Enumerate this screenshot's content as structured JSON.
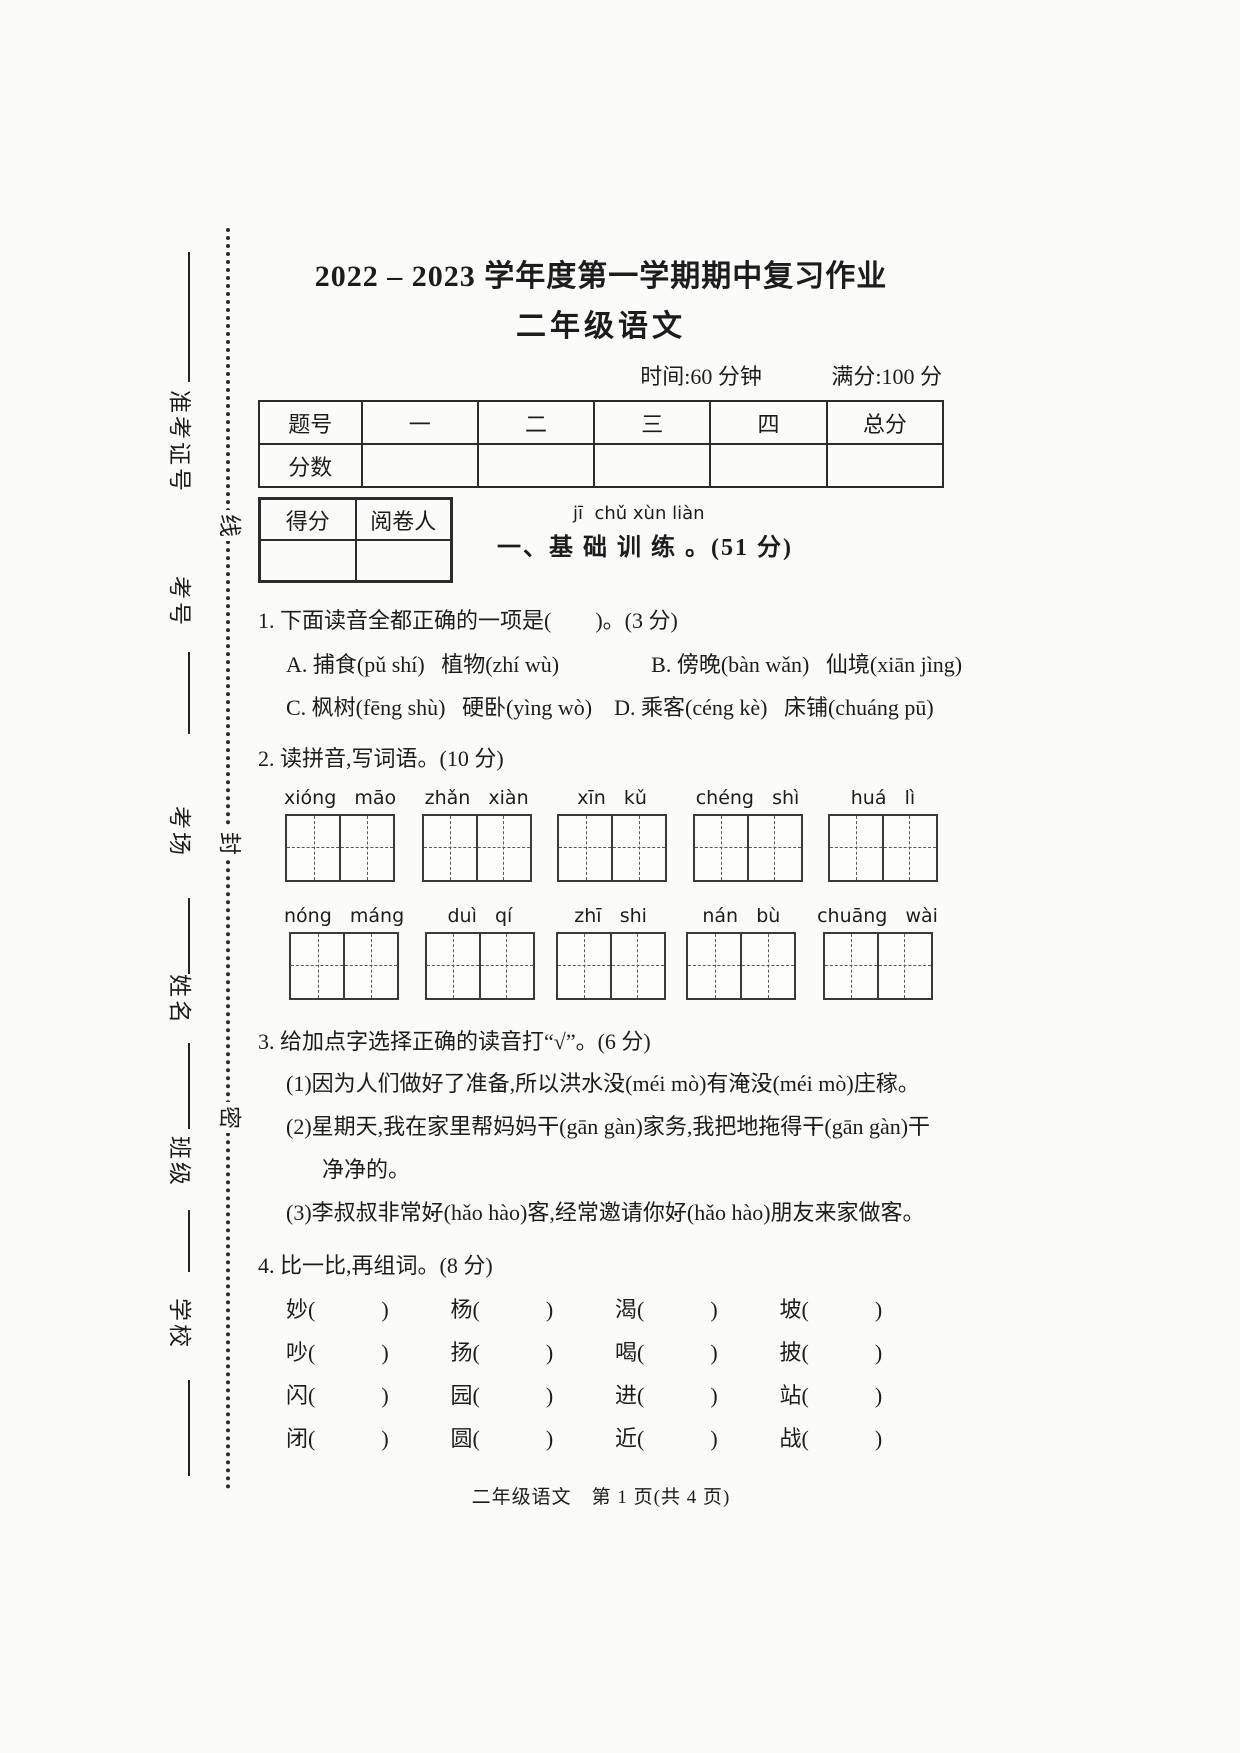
{
  "page": {
    "title": "2022 – 2023 学年度第一学期期中复习作业",
    "subtitle": "二年级语文",
    "time_info": "时间:60 分钟",
    "score_info": "满分:100 分",
    "footer": "二年级语文　第 1 页(共 4 页)"
  },
  "seal_line": {
    "labels": [
      "准考证号",
      "考号",
      "考场",
      "姓名",
      "班级",
      "学校"
    ],
    "seal_chars": [
      "线",
      "封",
      "密"
    ]
  },
  "score_table": {
    "header": [
      "题号",
      "一",
      "二",
      "三",
      "四",
      "总分"
    ],
    "row_label": "分数"
  },
  "grading_box": {
    "score_label": "得分",
    "grader_label": "阅卷人"
  },
  "section1": {
    "pinyin": "jī  chǔ xùn liàn",
    "heading": "一、基 础 训 练 。(51 分)"
  },
  "q1": {
    "stem": "1. 下面读音全都正确的一项是(　　)。(3 分)",
    "option_a": "A. 捕食(pǔ shí)   植物(zhí wù)",
    "option_b": "B. 傍晚(bàn wǎn)   仙境(xiān jìng)",
    "option_c": "C. 枫树(fēng shù)   硬卧(yìng wò)",
    "option_d": "D. 乘客(céng kè)   床铺(chuáng pū)"
  },
  "q2": {
    "stem": "2. 读拼音,写词语。(10 分)",
    "row1": [
      "xióng   māo",
      "zhǎn   xiàn",
      "xīn   kǔ",
      "chéng   shì",
      "huá   lì"
    ],
    "row2": [
      "nóng   máng",
      "duì   qí",
      "zhī   shi",
      "nán   bù",
      "chuāng   wài"
    ]
  },
  "q3": {
    "stem": "3. 给加点字选择正确的读音打“√”。(6 分)",
    "lines": [
      {
        "indent": false,
        "segments": [
          {
            "text": "(1)因为人们做好了准备,所以洪水"
          },
          {
            "text": "没",
            "dot": true
          },
          {
            "text": "(méi mò)有淹"
          },
          {
            "text": "没",
            "dot": true
          },
          {
            "text": "(méi mò)庄稼。"
          }
        ]
      },
      {
        "indent": false,
        "segments": [
          {
            "text": "(2)星期天,我在家里帮妈妈"
          },
          {
            "text": "干",
            "dot": true
          },
          {
            "text": "(gān gàn)家务,我把地拖得"
          },
          {
            "text": "干",
            "dot": true
          },
          {
            "text": "(gān gàn)干"
          }
        ]
      },
      {
        "indent": true,
        "segments": [
          {
            "text": "净净的。"
          }
        ]
      },
      {
        "indent": false,
        "segments": [
          {
            "text": "(3)李叔叔非常"
          },
          {
            "text": "好",
            "dot": true
          },
          {
            "text": "(hǎo hào)客,经常邀请你"
          },
          {
            "text": "好",
            "dot": true
          },
          {
            "text": "(hǎo hào)朋友来家做客。"
          }
        ]
      }
    ]
  },
  "q4": {
    "stem": "4. 比一比,再组词。(8 分)",
    "cells": [
      "妙(　　　)",
      "杨(　　　)",
      "渴(　　　)",
      "坡(　　　)",
      "吵(　　　)",
      "扬(　　　)",
      "喝(　　　)",
      "披(　　　)",
      "闪(　　　)",
      "园(　　　)",
      "进(　　　)",
      "站(　　　)",
      "闭(　　　)",
      "圆(　　　)",
      "近(　　　)",
      "战(　　　)"
    ]
  }
}
